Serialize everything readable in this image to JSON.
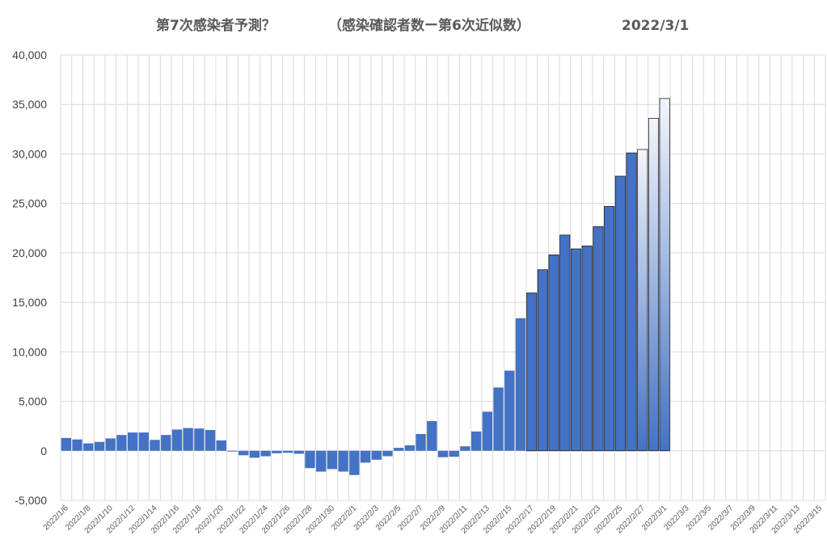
{
  "chart_data": {
    "type": "bar",
    "title": "第7次感染者予測？　（感染確認者数ー第6次近似数）　2022/3/1",
    "title_parts": [
      "第7次感染者予測？",
      "（感染確認者数ー第6次近似数）",
      "2022/3/1"
    ],
    "xlabel": "",
    "ylabel": "",
    "ylim": [
      -5000,
      40000
    ],
    "yticks": [
      -5000,
      0,
      5000,
      10000,
      15000,
      20000,
      25000,
      30000,
      35000,
      40000
    ],
    "ytick_labels": [
      "-5,000",
      "0",
      "5,000",
      "10,000",
      "15,000",
      "20,000",
      "25,000",
      "30,000",
      "35,000",
      "40,000"
    ],
    "grid": true,
    "legend": "none",
    "colors": {
      "bar": "#4472c4",
      "predicted_top": "#f2f5fb",
      "predicted_bottom": "#4472c4",
      "grid": "#d9d9d9",
      "axis_text": "#404040",
      "title": "#595959"
    },
    "categories": [
      "2022/1/6",
      "2022/1/7",
      "2022/1/8",
      "2022/1/9",
      "2022/1/10",
      "2022/1/11",
      "2022/1/12",
      "2022/1/13",
      "2022/1/14",
      "2022/1/15",
      "2022/1/16",
      "2022/1/17",
      "2022/1/18",
      "2022/1/19",
      "2022/1/20",
      "2022/1/21",
      "2022/1/22",
      "2022/1/23",
      "2022/1/24",
      "2022/1/25",
      "2022/1/26",
      "2022/1/27",
      "2022/1/28",
      "2022/1/29",
      "2022/1/30",
      "2022/1/31",
      "2022/2/1",
      "2022/2/2",
      "2022/2/3",
      "2022/2/4",
      "2022/2/5",
      "2022/2/6",
      "2022/2/7",
      "2022/2/8",
      "2022/2/9",
      "2022/2/10",
      "2022/2/11",
      "2022/2/12",
      "2022/2/13",
      "2022/2/14",
      "2022/2/15",
      "2022/2/16",
      "2022/2/17",
      "2022/2/18",
      "2022/2/19",
      "2022/2/20",
      "2022/2/21",
      "2022/2/22",
      "2022/2/23",
      "2022/2/24",
      "2022/2/25",
      "2022/2/26",
      "2022/2/27",
      "2022/2/28",
      "2022/3/1",
      "2022/3/2",
      "2022/3/3",
      "2022/3/4",
      "2022/3/5",
      "2022/3/6",
      "2022/3/7",
      "2022/3/8",
      "2022/3/9",
      "2022/3/10",
      "2022/3/11",
      "2022/3/12",
      "2022/3/13",
      "2022/3/14",
      "2022/3/15"
    ],
    "tick_labels": [
      "2022/1/6",
      "2022/1/8",
      "2022/1/10",
      "2022/1/12",
      "2022/1/14",
      "2022/1/16",
      "2022/1/18",
      "2022/1/20",
      "2022/1/22",
      "2022/1/24",
      "2022/1/26",
      "2022/1/28",
      "2022/1/30",
      "2022/2/1",
      "2022/2/3",
      "2022/2/5",
      "2022/2/7",
      "2022/2/9",
      "2022/2/11",
      "2022/2/13",
      "2022/2/15",
      "2022/2/17",
      "2022/2/19",
      "2022/2/21",
      "2022/2/23",
      "2022/2/25",
      "2022/2/27",
      "2022/3/1",
      "2022/3/3",
      "2022/3/5",
      "2022/3/7",
      "2022/3/9",
      "2022/3/11",
      "2022/3/13",
      "2022/3/15"
    ],
    "values": [
      1300,
      1150,
      750,
      900,
      1250,
      1600,
      1850,
      1850,
      1100,
      1600,
      2150,
      2300,
      2250,
      2100,
      1050,
      -80,
      -450,
      -700,
      -550,
      -250,
      -200,
      -300,
      -1750,
      -2100,
      -1850,
      -2100,
      -2450,
      -1200,
      -900,
      -550,
      300,
      550,
      1700,
      3000,
      -650,
      -600,
      450,
      1950,
      3950,
      6400,
      8100,
      13400,
      15950,
      18300,
      19800,
      21800,
      20400,
      20700,
      22650,
      24700,
      27750,
      30100,
      30450,
      33600,
      35600,
      null,
      null,
      null,
      null,
      null,
      null,
      null,
      null,
      null,
      null,
      null,
      null,
      null,
      null
    ],
    "predicted_categories": [
      "2022/2/27",
      "2022/2/28",
      "2022/3/1"
    ]
  }
}
